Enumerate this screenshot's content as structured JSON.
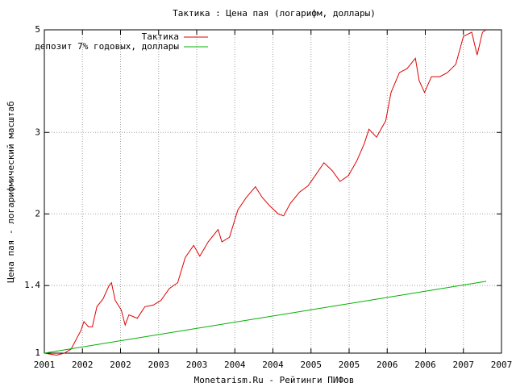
{
  "chart_data": {
    "type": "line",
    "title": "Тактика : Цена пая (логарифм, доллары)",
    "x_label": "Monetarism.Ru - Рейтинги ПИФов",
    "y_label": "Цена пая - логарифмический масштаб",
    "log_y": true,
    "grid": true,
    "legend": "top-left",
    "xlim": [
      2001,
      2007
    ],
    "xticks": [
      2001,
      {
        "value": 2001.5,
        "label": "2002"
      },
      2002,
      {
        "value": 2002.5,
        "label": "2003"
      },
      2003,
      {
        "value": 2003.5,
        "label": "2004"
      },
      2004,
      {
        "value": 2004.5,
        "label": "2005"
      },
      2005,
      {
        "value": 2005.5,
        "label": "2006"
      },
      2006,
      {
        "value": 2006.5,
        "label": "2007"
      },
      2007
    ],
    "ylim": [
      1,
      5
    ],
    "yticks": [
      1,
      1.4,
      2,
      3,
      5
    ],
    "series": [
      {
        "name": "Тактика",
        "color": "#e00000",
        "x": [
          2001.0,
          2001.16,
          2001.26,
          2001.35,
          2001.48,
          2001.52,
          2001.58,
          2001.63,
          2001.69,
          2001.77,
          2001.85,
          2001.88,
          2001.93,
          2002.01,
          2002.06,
          2002.11,
          2002.22,
          2002.32,
          2002.43,
          2002.53,
          2002.64,
          2002.75,
          2002.85,
          2002.96,
          2003.04,
          2003.15,
          2003.28,
          2003.33,
          2003.43,
          2003.54,
          2003.65,
          2003.77,
          2003.86,
          2003.96,
          2004.07,
          2004.14,
          2004.23,
          2004.35,
          2004.46,
          2004.54,
          2004.67,
          2004.78,
          2004.88,
          2004.99,
          2005.1,
          2005.2,
          2005.26,
          2005.36,
          2005.48,
          2005.55,
          2005.66,
          2005.76,
          2005.87,
          2005.92,
          2005.99,
          2006.08,
          2006.19,
          2006.29,
          2006.4,
          2006.5,
          2006.61,
          2006.68,
          2006.75,
          2006.8
        ],
        "values": [
          1.0,
          0.99,
          1.0,
          1.02,
          1.12,
          1.17,
          1.14,
          1.14,
          1.26,
          1.31,
          1.4,
          1.42,
          1.3,
          1.24,
          1.15,
          1.21,
          1.19,
          1.26,
          1.27,
          1.3,
          1.38,
          1.42,
          1.61,
          1.71,
          1.62,
          1.74,
          1.85,
          1.74,
          1.78,
          2.04,
          2.17,
          2.29,
          2.17,
          2.08,
          2.0,
          1.98,
          2.11,
          2.23,
          2.3,
          2.4,
          2.58,
          2.48,
          2.35,
          2.42,
          2.6,
          2.84,
          3.05,
          2.93,
          3.18,
          3.66,
          4.04,
          4.12,
          4.34,
          3.88,
          3.66,
          3.96,
          3.96,
          4.04,
          4.21,
          4.84,
          4.94,
          4.41,
          4.94,
          5.0
        ]
      },
      {
        "name": "депозит 7% годовых, доллары",
        "color": "#00b000",
        "x": [
          2001.0,
          2006.8
        ],
        "values": [
          1.0,
          1.43
        ]
      }
    ]
  }
}
